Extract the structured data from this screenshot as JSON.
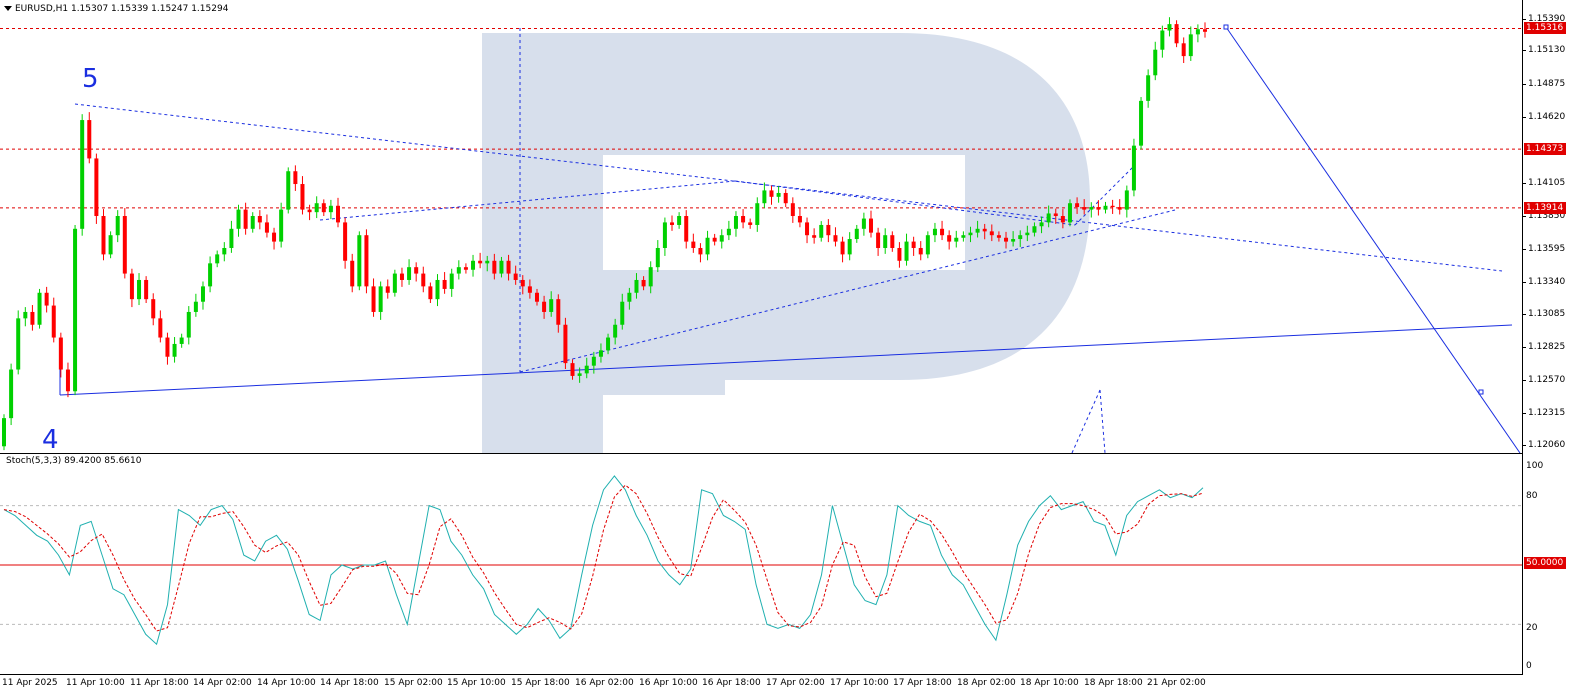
{
  "chart": {
    "symbol_title": "EURUSD,H1  1.15307 1.15339 1.15247 1.15294",
    "bull_color": "#00d000",
    "bear_color": "#ff0000",
    "line_color": "#1a2ee0",
    "level_color": "#e00000",
    "watermark_color": "#c9d4e6"
  },
  "price_axis": [
    "1.15390",
    "1.15130",
    "1.14875",
    "1.14620",
    "1.14105",
    "1.13850",
    "1.13595",
    "1.13340",
    "1.13085",
    "1.12825",
    "1.12570",
    "1.12315",
    "1.12060"
  ],
  "price_tags": [
    {
      "label": "1.15316",
      "value": 1.15316
    },
    {
      "label": "1.14373",
      "value": 1.14373
    },
    {
      "label": "1.13914",
      "value": 1.13914
    }
  ],
  "wave_labels": {
    "five": "5",
    "four": "4"
  },
  "stoch": {
    "title": "Stoch(5,3,3) 89.4200 85.6610",
    "axis": [
      "100",
      "80",
      "20",
      "0"
    ],
    "level_tag": "50.0000",
    "main_color": "#20b0b0",
    "signal_color": "#e00000"
  },
  "time_axis": [
    "11 Apr 2025",
    "11 Apr 10:00",
    "11 Apr 18:00",
    "14 Apr 02:00",
    "14 Apr 10:00",
    "14 Apr 18:00",
    "15 Apr 02:00",
    "15 Apr 10:00",
    "15 Apr 18:00",
    "16 Apr 02:00",
    "16 Apr 10:00",
    "16 Apr 18:00",
    "17 Apr 02:00",
    "17 Apr 10:00",
    "17 Apr 18:00",
    "18 Apr 02:00",
    "18 Apr 10:00",
    "18 Apr 18:00",
    "21 Apr 02:00"
  ],
  "chart_data": {
    "type": "candlestick",
    "price_closes": [
      1.1227,
      1.1265,
      1.1305,
      1.131,
      1.13,
      1.1325,
      1.1315,
      1.129,
      1.1265,
      1.1248,
      1.1375,
      1.146,
      1.143,
      1.1385,
      1.1355,
      1.137,
      1.1385,
      1.134,
      1.132,
      1.1335,
      1.132,
      1.1305,
      1.129,
      1.1275,
      1.1285,
      1.129,
      1.131,
      1.1318,
      1.133,
      1.1348,
      1.1355,
      1.136,
      1.1375,
      1.139,
      1.1375,
      1.1385,
      1.138,
      1.1372,
      1.1365,
      1.139,
      1.142,
      1.141,
      1.139,
      1.1388,
      1.1395,
      1.1388,
      1.1393,
      1.138,
      1.135,
      1.133,
      1.137,
      1.133,
      1.131,
      1.133,
      1.1325,
      1.134,
      1.1335,
      1.1345,
      1.134,
      1.133,
      1.132,
      1.1335,
      1.1328,
      1.134,
      1.1345,
      1.1343,
      1.135,
      1.1348,
      1.135,
      1.134,
      1.135,
      1.134,
      1.1335,
      1.133,
      1.1325,
      1.1318,
      1.131,
      1.132,
      1.13,
      1.127,
      1.126,
      1.1262,
      1.1268,
      1.1275,
      1.128,
      1.129,
      1.13,
      1.1318,
      1.1325,
      1.1335,
      1.133,
      1.1345,
      1.136,
      1.138,
      1.1378,
      1.1385,
      1.1365,
      1.136,
      1.1355,
      1.1368,
      1.1365,
      1.137,
      1.1375,
      1.1385,
      1.138,
      1.1378,
      1.1395,
      1.1405,
      1.14,
      1.1403,
      1.1395,
      1.1385,
      1.138,
      1.137,
      1.1368,
      1.1378,
      1.137,
      1.1365,
      1.1355,
      1.1367,
      1.1375,
      1.1383,
      1.1372,
      1.136,
      1.137,
      1.136,
      1.135,
      1.1365,
      1.136,
      1.1355,
      1.137,
      1.1375,
      1.137,
      1.1365,
      1.1368,
      1.137,
      1.1372,
      1.1375,
      1.1373,
      1.137,
      1.1368,
      1.1365,
      1.1367,
      1.137,
      1.1372,
      1.1377,
      1.138,
      1.1387,
      1.1385,
      1.138,
      1.1395,
      1.1392,
      1.139,
      1.1392,
      1.139,
      1.1393,
      1.1392,
      1.139,
      1.1405,
      1.144,
      1.1475,
      1.1495,
      1.1515,
      1.153,
      1.1535,
      1.152,
      1.151,
      1.1527,
      1.1531,
      1.1529
    ],
    "stoch_main": [
      78,
      75,
      70,
      65,
      62,
      55,
      45,
      70,
      72,
      55,
      38,
      35,
      25,
      15,
      10,
      30,
      78,
      75,
      70,
      78,
      80,
      73,
      55,
      52,
      62,
      65,
      58,
      42,
      25,
      22,
      45,
      50,
      48,
      50,
      50,
      52,
      35,
      20,
      50,
      80,
      78,
      62,
      55,
      45,
      38,
      25,
      20,
      15,
      20,
      28,
      22,
      13,
      18,
      45,
      70,
      88,
      95,
      88,
      75,
      65,
      52,
      45,
      40,
      48,
      88,
      86,
      75,
      72,
      68,
      40,
      20,
      18,
      20,
      18,
      25,
      45,
      80,
      60,
      40,
      32,
      30,
      45,
      80,
      75,
      72,
      70,
      55,
      45,
      40,
      30,
      20,
      12,
      35,
      60,
      72,
      80,
      85,
      78,
      80,
      82,
      72,
      70,
      55,
      75,
      82,
      85,
      88,
      84,
      86,
      84,
      89
    ]
  }
}
